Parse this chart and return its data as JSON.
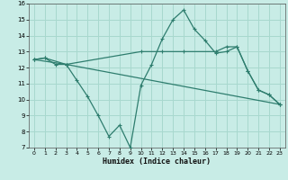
{
  "xlabel": "Humidex (Indice chaleur)",
  "xlim": [
    -0.5,
    23.5
  ],
  "ylim": [
    7,
    16
  ],
  "yticks": [
    7,
    8,
    9,
    10,
    11,
    12,
    13,
    14,
    15,
    16
  ],
  "xticks": [
    0,
    1,
    2,
    3,
    4,
    5,
    6,
    7,
    8,
    9,
    10,
    11,
    12,
    13,
    14,
    15,
    16,
    17,
    18,
    19,
    20,
    21,
    22,
    23
  ],
  "bg_color": "#c8ece6",
  "grid_color": "#a8d8ce",
  "line_color": "#2e7d6e",
  "line1_x": [
    0,
    1,
    2,
    3,
    4,
    5,
    6,
    7,
    8,
    9,
    10,
    11,
    12,
    13,
    14,
    15,
    16,
    17,
    18,
    19,
    20,
    21,
    22,
    23
  ],
  "line1_y": [
    12.5,
    12.6,
    12.2,
    12.2,
    11.2,
    10.2,
    9.0,
    7.7,
    8.4,
    7.0,
    10.9,
    12.2,
    13.8,
    15.0,
    15.6,
    14.4,
    13.7,
    12.9,
    13.0,
    13.3,
    11.8,
    10.6,
    10.3,
    9.7
  ],
  "line2_x": [
    0,
    1,
    3,
    23
  ],
  "line2_y": [
    12.5,
    12.6,
    12.2,
    9.7
  ],
  "line3_x": [
    0,
    3,
    10,
    12,
    14,
    17,
    18,
    19,
    20,
    21,
    22,
    23
  ],
  "line3_y": [
    12.5,
    12.2,
    13.0,
    13.0,
    13.0,
    13.0,
    13.3,
    13.3,
    11.8,
    10.6,
    10.3,
    9.7
  ]
}
